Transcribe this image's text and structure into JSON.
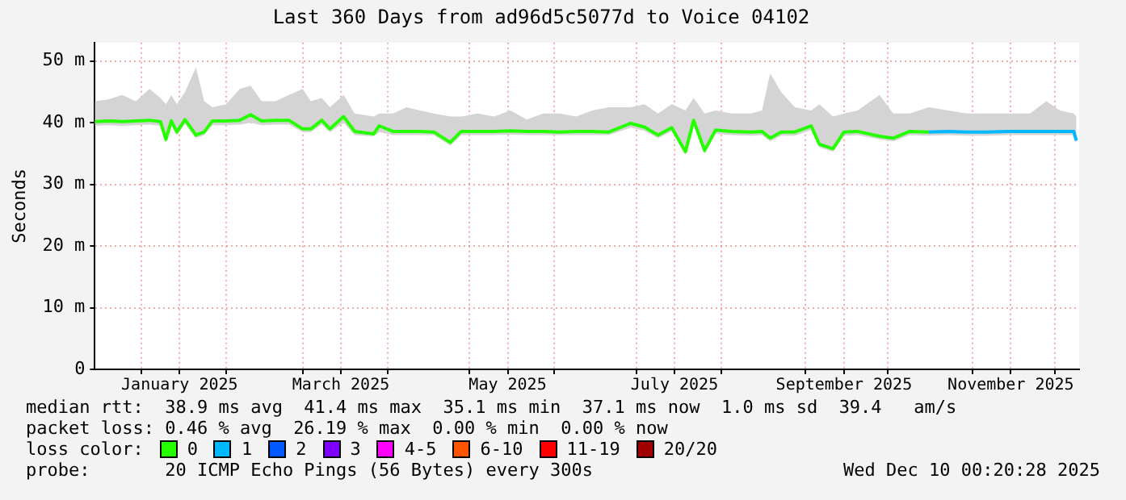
{
  "chart_data": {
    "type": "line",
    "title": "Last 360 Days from ad96d5c5077d to Voice 04102",
    "ylabel": "Seconds",
    "legend_title": "loss color:",
    "legend": "bottom",
    "grid": true,
    "marker": "none",
    "line_style": "solid",
    "xlim": [
      "2024-12-15",
      "2025-12-10"
    ],
    "xticks": [
      {
        "value": "2025-01-01",
        "label": null
      },
      {
        "value": "2025-01-15",
        "label": "January 2025"
      },
      {
        "value": "2025-02-01",
        "label": null
      },
      {
        "value": "2025-03-01",
        "label": null
      },
      {
        "value": "2025-03-15",
        "label": "March 2025"
      },
      {
        "value": "2025-04-01",
        "label": null
      },
      {
        "value": "2025-05-01",
        "label": null
      },
      {
        "value": "2025-05-15",
        "label": "May 2025"
      },
      {
        "value": "2025-06-01",
        "label": null
      },
      {
        "value": "2025-07-01",
        "label": null
      },
      {
        "value": "2025-07-15",
        "label": "July 2025"
      },
      {
        "value": "2025-08-01",
        "label": null
      },
      {
        "value": "2025-09-01",
        "label": null
      },
      {
        "value": "2025-09-15",
        "label": "September 2025"
      },
      {
        "value": "2025-10-01",
        "label": null
      },
      {
        "value": "2025-11-01",
        "label": null
      },
      {
        "value": "2025-11-15",
        "label": "November 2025"
      },
      {
        "value": "2025-12-01",
        "label": null
      }
    ],
    "ylim": [
      0,
      53
    ],
    "yticks": [
      0,
      {
        "value": 10,
        "label": "10 m"
      },
      {
        "value": 20,
        "label": "20 m"
      },
      {
        "value": 30,
        "label": "30 m"
      },
      {
        "value": 40,
        "label": "40 m"
      },
      {
        "value": 50,
        "label": "50 m"
      }
    ],
    "x": [
      "2024-12-15",
      "2024-12-20",
      "2024-12-25",
      "2024-12-30",
      "2025-01-04",
      "2025-01-08",
      "2025-01-10",
      "2025-01-12",
      "2025-01-14",
      "2025-01-17",
      "2025-01-21",
      "2025-01-24",
      "2025-01-27",
      "2025-02-01",
      "2025-02-06",
      "2025-02-10",
      "2025-02-14",
      "2025-02-19",
      "2025-02-24",
      "2025-03-01",
      "2025-03-04",
      "2025-03-08",
      "2025-03-11",
      "2025-03-16",
      "2025-03-20",
      "2025-03-27",
      "2025-03-29",
      "2025-04-03",
      "2025-04-08",
      "2025-04-13",
      "2025-04-18",
      "2025-04-24",
      "2025-04-28",
      "2025-05-04",
      "2025-05-10",
      "2025-05-16",
      "2025-05-22",
      "2025-05-28",
      "2025-06-03",
      "2025-06-09",
      "2025-06-15",
      "2025-06-21",
      "2025-06-29",
      "2025-07-04",
      "2025-07-09",
      "2025-07-14",
      "2025-07-19",
      "2025-07-22",
      "2025-07-26",
      "2025-07-30",
      "2025-08-05",
      "2025-08-12",
      "2025-08-16",
      "2025-08-19",
      "2025-08-23",
      "2025-08-28",
      "2025-09-03",
      "2025-09-06",
      "2025-09-11",
      "2025-09-15",
      "2025-09-20",
      "2025-09-28",
      "2025-10-03",
      "2025-10-09",
      "2025-10-16",
      "2025-10-23",
      "2025-10-30",
      "2025-11-06",
      "2025-11-14",
      "2025-11-22",
      "2025-11-28",
      "2025-12-03",
      "2025-12-08",
      "2025-12-09"
    ],
    "series": [
      {
        "name": "0",
        "color": "#26ff00",
        "values": [
          40.2,
          40.3,
          40.2,
          40.3,
          40.4,
          40.2,
          37.3,
          40.3,
          38.5,
          40.5,
          38,
          38.5,
          40.3,
          40.3,
          40.4,
          41.3,
          40.3,
          40.4,
          40.4,
          39,
          39,
          40.4,
          39,
          41,
          38.6,
          38.2,
          39.5,
          38.6,
          38.6,
          38.6,
          38.5,
          36.8,
          38.6,
          38.6,
          38.6,
          38.7,
          38.6,
          38.6,
          38.5,
          38.6,
          38.6,
          38.5,
          39.9,
          39.3,
          38,
          39.2,
          35.3,
          40.4,
          35.5,
          38.8,
          38.6,
          38.5,
          38.6,
          37.5,
          38.5,
          38.5,
          39.5,
          36.5,
          35.8,
          38.5,
          38.6,
          37.8,
          37.5,
          38.6,
          38.5,
          null,
          null,
          null,
          null,
          null,
          null,
          null,
          null,
          null
        ],
        "lower": [
          39.5,
          39.6,
          39.5,
          39.6,
          39.7,
          39.5,
          36.8,
          39.6,
          38,
          39.8,
          37.5,
          38,
          39.6,
          39.6,
          39.7,
          40,
          39.6,
          39.7,
          39.7,
          38.5,
          38.5,
          39.7,
          38.5,
          40,
          38,
          37.8,
          38.5,
          38,
          38,
          38,
          38,
          36.3,
          38,
          38,
          38,
          38.1,
          38,
          38,
          38,
          38,
          38,
          38,
          39.2,
          38.7,
          37.5,
          38.6,
          34.8,
          39.6,
          35,
          38.2,
          38,
          37.9,
          38,
          37,
          37.9,
          37.9,
          38.8,
          36,
          35.3,
          37.9,
          38,
          37.3,
          37,
          38,
          37.9,
          38,
          37.9,
          37.9,
          38,
          38,
          38,
          38,
          38,
          36.6
        ],
        "upper": [
          43.5,
          43.8,
          44.5,
          43.5,
          45.5,
          44,
          43,
          44.5,
          43,
          45,
          49,
          43.5,
          42.5,
          43,
          45.5,
          46,
          43.5,
          43.5,
          44.5,
          45.5,
          43.5,
          44,
          42.5,
          44.5,
          41.5,
          41,
          41.5,
          41.5,
          42.5,
          42,
          41.5,
          41,
          41,
          41.5,
          41,
          42,
          40.5,
          41.5,
          41.5,
          41,
          42,
          42.5,
          42.5,
          43,
          41.5,
          43,
          42,
          44,
          41.5,
          42,
          41.5,
          41.5,
          42,
          48,
          45,
          42.5,
          42,
          43,
          41,
          41.5,
          42,
          44.5,
          41.5,
          41.5,
          42.5,
          42,
          41.5,
          41.5,
          41.5,
          41.5,
          43.5,
          42,
          41.5,
          41
        ]
      },
      {
        "name": "1",
        "color": "#00b8ff",
        "x": [
          "2025-10-16",
          "2025-10-23",
          "2025-10-30",
          "2025-11-06",
          "2025-11-14",
          "2025-11-22",
          "2025-11-28",
          "2025-12-03",
          "2025-12-08",
          "2025-12-09"
        ],
        "values": [
          38.5,
          38.6,
          38.5,
          38.5,
          38.6,
          38.6,
          38.6,
          38.6,
          38.6,
          37.1
        ]
      },
      {
        "name": "2",
        "color": "#0059ff",
        "values": [
          null,
          null,
          null,
          null,
          null,
          null,
          null,
          null,
          null,
          null,
          null,
          null,
          null,
          null,
          null,
          null,
          null,
          null,
          null,
          null,
          null,
          null,
          null,
          null,
          null,
          null,
          null,
          null,
          null,
          null,
          null,
          null,
          null,
          null,
          null,
          null,
          null,
          null,
          null,
          null,
          null,
          null,
          null,
          null,
          null,
          null,
          null,
          null,
          null,
          null,
          null,
          null,
          null,
          null,
          null,
          null,
          null,
          null,
          null,
          null,
          null,
          null,
          null,
          null,
          null,
          null,
          null,
          null,
          null,
          null,
          null,
          null,
          null,
          null
        ]
      },
      {
        "name": "3",
        "color": "#7e00ff",
        "values": [
          null,
          null,
          null,
          null,
          null,
          null,
          null,
          null,
          null,
          null,
          null,
          null,
          null,
          null,
          null,
          null,
          null,
          null,
          null,
          null,
          null,
          null,
          null,
          null,
          null,
          null,
          null,
          null,
          null,
          null,
          null,
          null,
          null,
          null,
          null,
          null,
          null,
          null,
          null,
          null,
          null,
          null,
          null,
          null,
          null,
          null,
          null,
          null,
          null,
          null,
          null,
          null,
          null,
          null,
          null,
          null,
          null,
          null,
          null,
          null,
          null,
          null,
          null,
          null,
          null,
          null,
          null,
          null,
          null,
          null,
          null,
          null,
          null,
          null
        ]
      },
      {
        "name": "4-5",
        "color": "#ff00ff",
        "values": [
          null,
          null,
          null,
          null,
          null,
          null,
          null,
          null,
          null,
          null,
          null,
          null,
          null,
          null,
          null,
          null,
          null,
          null,
          null,
          null,
          null,
          null,
          null,
          null,
          null,
          null,
          null,
          null,
          null,
          null,
          null,
          null,
          null,
          null,
          null,
          null,
          null,
          null,
          null,
          null,
          null,
          null,
          null,
          null,
          null,
          null,
          null,
          null,
          null,
          null,
          null,
          null,
          null,
          null,
          null,
          null,
          null,
          null,
          null,
          null,
          null,
          null,
          null,
          null,
          null,
          null,
          null,
          null,
          null,
          null,
          null,
          null,
          null,
          null
        ]
      },
      {
        "name": "6-10",
        "color": "#ff5500",
        "values": [
          null,
          null,
          null,
          null,
          null,
          null,
          null,
          null,
          null,
          null,
          null,
          null,
          null,
          null,
          null,
          null,
          null,
          null,
          null,
          null,
          null,
          null,
          null,
          null,
          null,
          null,
          null,
          null,
          null,
          null,
          null,
          null,
          null,
          null,
          null,
          null,
          null,
          null,
          null,
          null,
          null,
          null,
          null,
          null,
          null,
          null,
          null,
          null,
          null,
          null,
          null,
          null,
          null,
          null,
          null,
          null,
          null,
          null,
          null,
          null,
          null,
          null,
          null,
          null,
          null,
          null,
          null,
          null,
          null,
          null,
          null,
          null,
          null,
          null
        ]
      },
      {
        "name": "11-19",
        "color": "#ff0000",
        "values": [
          null,
          null,
          null,
          null,
          null,
          null,
          null,
          null,
          null,
          null,
          null,
          null,
          null,
          null,
          null,
          null,
          null,
          null,
          null,
          null,
          null,
          null,
          null,
          null,
          null,
          null,
          null,
          null,
          null,
          null,
          null,
          null,
          null,
          null,
          null,
          null,
          null,
          null,
          null,
          null,
          null,
          null,
          null,
          null,
          null,
          null,
          null,
          null,
          null,
          null,
          null,
          null,
          null,
          null,
          null,
          null,
          null,
          null,
          null,
          null,
          null,
          null,
          null,
          null,
          null,
          null,
          null,
          null,
          null,
          null,
          null,
          null,
          null,
          null
        ]
      },
      {
        "name": "20/20",
        "color": "#a10000",
        "values": [
          null,
          null,
          null,
          null,
          null,
          null,
          null,
          null,
          null,
          null,
          null,
          null,
          null,
          null,
          null,
          null,
          null,
          null,
          null,
          null,
          null,
          null,
          null,
          null,
          null,
          null,
          null,
          null,
          null,
          null,
          null,
          null,
          null,
          null,
          null,
          null,
          null,
          null,
          null,
          null,
          null,
          null,
          null,
          null,
          null,
          null,
          null,
          null,
          null,
          null,
          null,
          null,
          null,
          null,
          null,
          null,
          null,
          null,
          null,
          null,
          null,
          null,
          null,
          null,
          null,
          null,
          null,
          null,
          null,
          null,
          null,
          null,
          null,
          null
        ]
      }
    ],
    "annotations": [
      "median rtt:  38.9 ms avg  41.4 ms max  35.1 ms min  37.1 ms now  1.0 ms sd  39.4   am/s",
      "packet loss: 0.46 % avg  26.19 % max  0.00 % min  0.00 % now",
      "probe:       20 ICMP Echo Pings (56 Bytes) every 300s",
      "Wed Dec 10 00:20:28 2025"
    ]
  }
}
